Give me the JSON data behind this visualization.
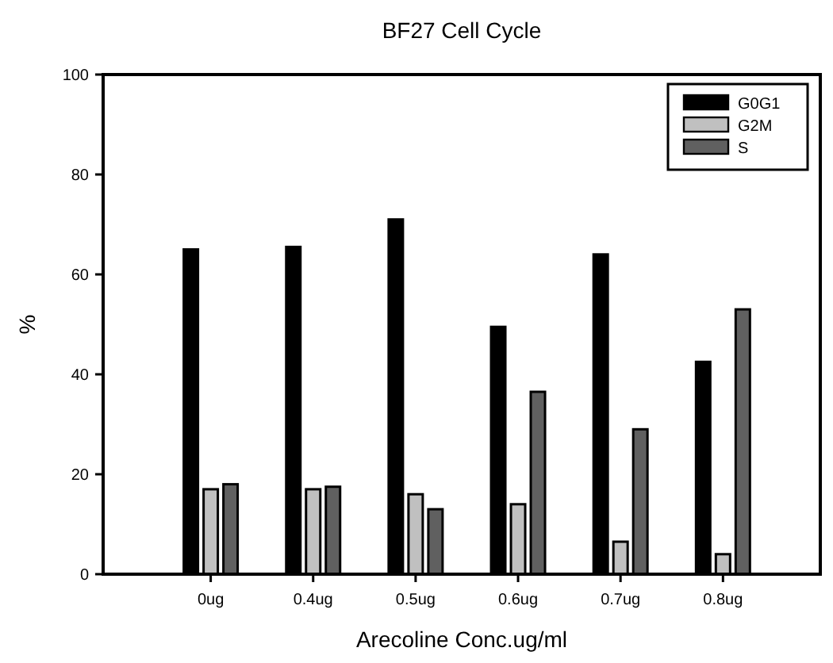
{
  "chart_data": {
    "type": "bar",
    "title": "BF27 Cell Cycle",
    "xlabel": "Arecoline Conc.ug/ml",
    "ylabel": "%",
    "categories": [
      "0ug",
      "0.4ug",
      "0.5ug",
      "0.6ug",
      "0.7ug",
      "0.8ug"
    ],
    "series": [
      {
        "name": "G0G1",
        "color": "#000000",
        "values": [
          65,
          65.5,
          71,
          49.5,
          64,
          42.5
        ]
      },
      {
        "name": "G2M",
        "color": "#c0c0c0",
        "values": [
          17,
          17,
          16,
          14,
          6.5,
          4
        ]
      },
      {
        "name": "S",
        "color": "#606060",
        "values": [
          18,
          17.5,
          13,
          36.5,
          29,
          53
        ]
      }
    ],
    "ylim": [
      0,
      100
    ],
    "yticks": [
      0,
      20,
      40,
      60,
      80,
      100
    ],
    "grid": false,
    "legend": "top right"
  }
}
